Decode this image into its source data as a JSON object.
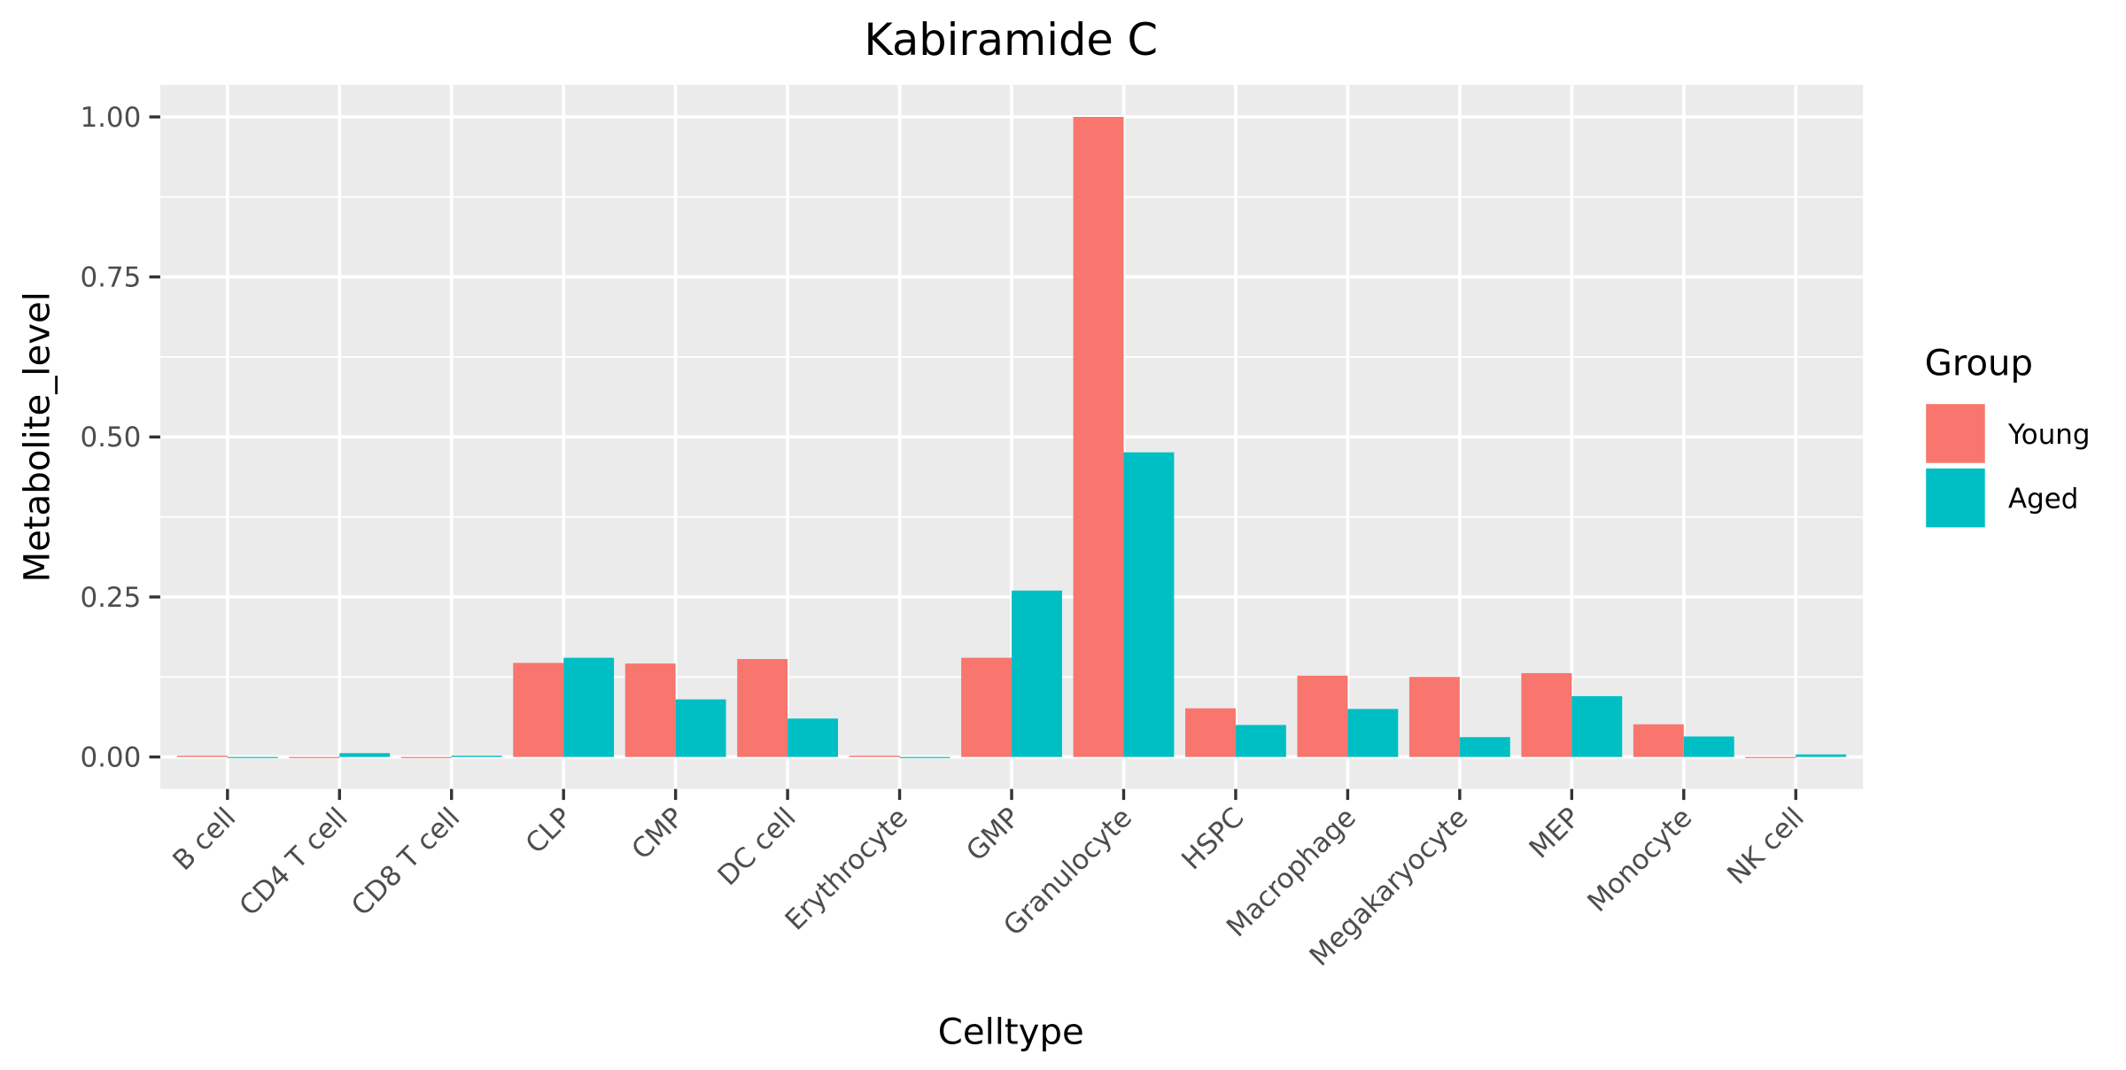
{
  "chart_data": {
    "type": "bar",
    "title": "Kabiramide C",
    "xlabel": "Celltype",
    "ylabel": "Metabolite_level",
    "ylim": [
      -0.05,
      1.05
    ],
    "yticks": [
      "0.00",
      "0.25",
      "0.50",
      "0.75",
      "1.00"
    ],
    "ytick_values": [
      0,
      0.25,
      0.5,
      0.75,
      1.0
    ],
    "categories": [
      "B cell",
      "CD4 T cell",
      "CD8 T cell",
      "CLP",
      "CMP",
      "DC cell",
      "Erythrocyte",
      "GMP",
      "Granulocyte",
      "HSPC",
      "Macrophage",
      "Megakaryocyte",
      "MEP",
      "Monocyte",
      "NK cell"
    ],
    "series": [
      {
        "name": "Young",
        "color": "#F8766D",
        "values": [
          0.002,
          0,
          0,
          0.147,
          0.146,
          0.153,
          0.002,
          0.155,
          1.0,
          0.076,
          0.127,
          0.125,
          0.131,
          0.051,
          0
        ]
      },
      {
        "name": "Aged",
        "color": "#00BFC4",
        "values": [
          0,
          0.006,
          0.002,
          0.155,
          0.09,
          0.06,
          0,
          0.26,
          0.476,
          0.05,
          0.075,
          0.031,
          0.095,
          0.032,
          0.004
        ]
      }
    ],
    "legend": {
      "title": "Group",
      "position": "right"
    },
    "grid": true,
    "panel_background": "#EBEBEB"
  }
}
